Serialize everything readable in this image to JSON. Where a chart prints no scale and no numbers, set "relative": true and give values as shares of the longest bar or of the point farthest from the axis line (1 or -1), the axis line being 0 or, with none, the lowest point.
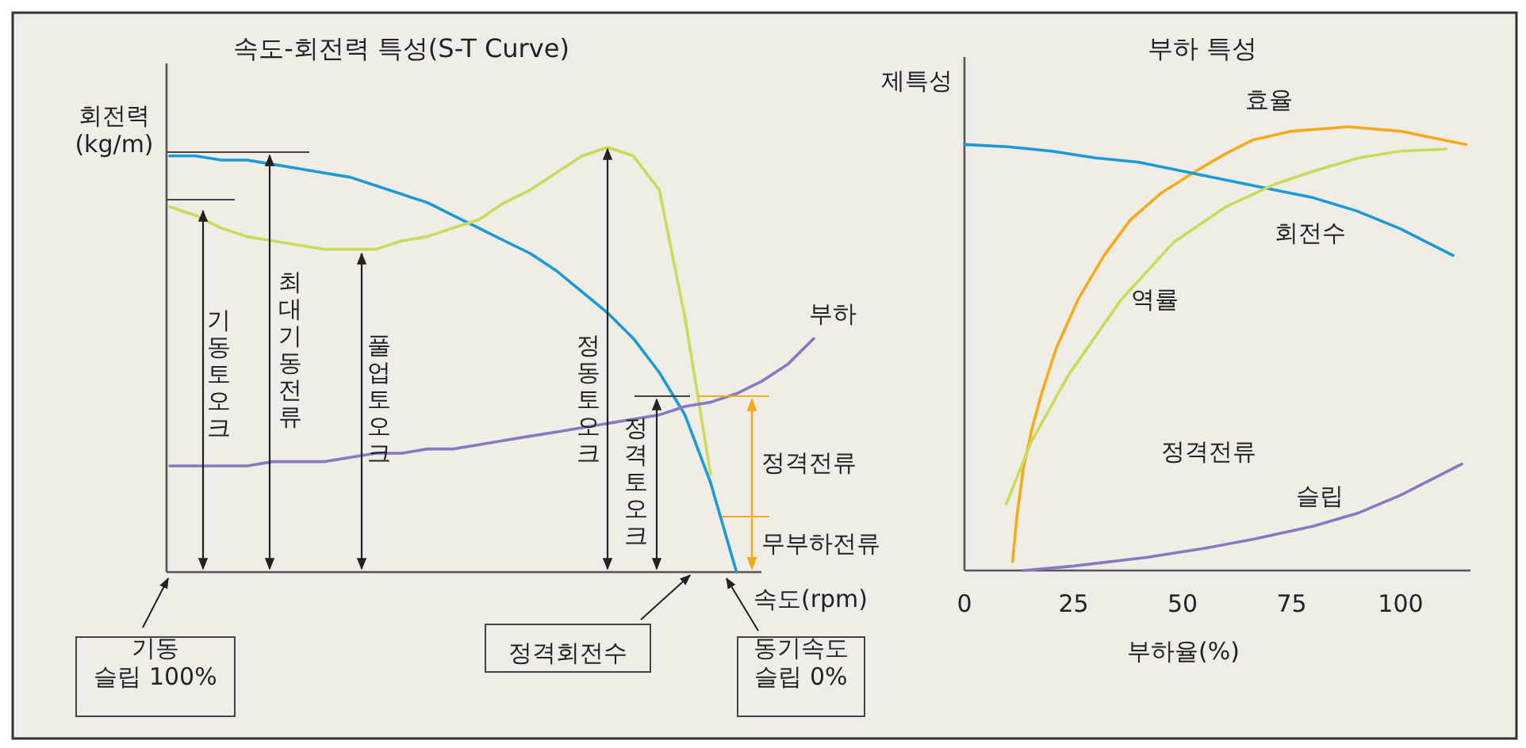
{
  "chart_data": [
    {
      "type": "line",
      "title": "속도-회전력 특성(S-T Curve)",
      "xlabel": "속도(rpm)",
      "ylabel": "회전력\n(kg/m)",
      "relative": true,
      "tick_labels": false,
      "categories": [
        null,
        null,
        null,
        null,
        null,
        null,
        null,
        null,
        null,
        null,
        null,
        null,
        null,
        null,
        null,
        null,
        null,
        null,
        null,
        null,
        null,
        null,
        null,
        null,
        null,
        null
      ],
      "series": [
        {
          "color": "#1a9ad6",
          "values": [
            0.98,
            0.98,
            0.97,
            0.97,
            0.96,
            0.95,
            0.94,
            0.93,
            0.91,
            0.89,
            0.87,
            0.84,
            0.81,
            0.78,
            0.75,
            0.71,
            0.66,
            0.61,
            0.55,
            0.47,
            0.37,
            0.21,
            0,
            null,
            null,
            null
          ]
        },
        {
          "color": "#c8dc5a",
          "values": [
            0.86,
            0.84,
            0.81,
            0.79,
            0.78,
            0.77,
            0.76,
            0.76,
            0.76,
            0.78,
            0.79,
            0.81,
            0.83,
            0.87,
            0.9,
            0.94,
            0.98,
            1,
            0.98,
            0.9,
            0.6,
            0.23,
            null,
            null,
            null,
            null
          ]
        },
        {
          "name": "부하",
          "color": "#8a78c0",
          "values": [
            0.25,
            0.25,
            0.25,
            0.25,
            0.26,
            0.26,
            0.26,
            0.27,
            0.28,
            0.28,
            0.29,
            0.29,
            0.3,
            0.31,
            0.32,
            0.33,
            0.34,
            0.35,
            0.36,
            0.37,
            0.39,
            0.4,
            0.42,
            0.45,
            0.49,
            0.55
          ]
        }
      ],
      "annotations": [
        "기동토오크",
        "최대기동전류",
        "풀업토오크",
        "정동토오크",
        "정격토오크",
        "정격전류",
        "무부하전류",
        "기동\n슬립 100%",
        "정격회전수",
        "동기속도\n슬립 0%"
      ]
    },
    {
      "type": "line",
      "title": "부하 특성",
      "xlabel": "부하율(%)",
      "ylabel": "제특성",
      "relative": true,
      "tick_labels": "x",
      "xlim": [
        0,
        116
      ],
      "xticks": [
        0,
        25,
        50,
        75,
        100
      ],
      "series": [
        {
          "name": "효율",
          "color": "#f5aa1c",
          "x": [
            11,
            12,
            13.5,
            15.5,
            17.7,
            21,
            26,
            32,
            38,
            45,
            53,
            60,
            66,
            75,
            88,
            100,
            115
          ],
          "values": [
            0.02,
            0.12,
            0.23,
            0.32,
            0.4,
            0.5,
            0.61,
            0.71,
            0.79,
            0.85,
            0.9,
            0.94,
            0.97,
            0.99,
            1,
            0.99,
            0.96
          ]
        },
        {
          "name": "회전수",
          "color": "#1a9ad6",
          "x": [
            0,
            10,
            20,
            30,
            40,
            50,
            60,
            70,
            80,
            90,
            100,
            112
          ],
          "values": [
            0.96,
            0.955,
            0.945,
            0.93,
            0.92,
            0.9,
            0.88,
            0.86,
            0.84,
            0.81,
            0.77,
            0.71
          ]
        },
        {
          "name": "역률",
          "color": "#c8dc5a",
          "x": [
            9.6,
            15.3,
            23.8,
            35.9,
            48,
            60,
            71,
            80,
            90.4,
            100,
            110.4
          ],
          "values": [
            0.15,
            0.29,
            0.44,
            0.61,
            0.74,
            0.82,
            0.87,
            0.9,
            0.93,
            0.945,
            0.95
          ]
        },
        {
          "name": "슬립",
          "color": "#8a78c0",
          "x": [
            13.5,
            25,
            42,
            55,
            66,
            80,
            90.4,
            100,
            114
          ],
          "values": [
            0,
            0.01,
            0.03,
            0.05,
            0.07,
            0.1,
            0.13,
            0.17,
            0.24
          ]
        }
      ],
      "annotations": [
        "정격전류"
      ]
    }
  ]
}
